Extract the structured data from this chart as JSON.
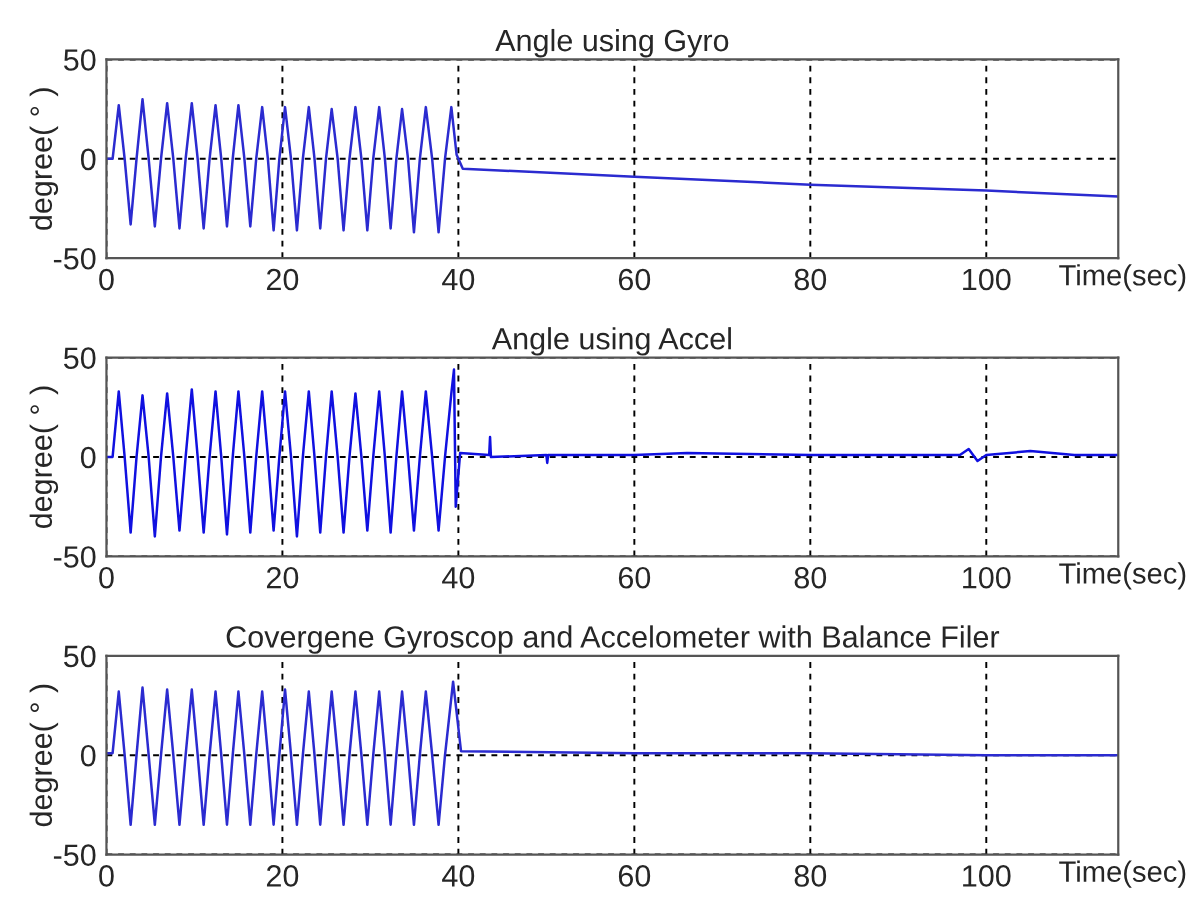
{
  "chart_data": [
    {
      "type": "line",
      "title": "Angle using Gyro",
      "xlabel": "Time(sec)",
      "ylabel": "degree( ° )",
      "xlim": [
        0,
        115
      ],
      "ylim": [
        -50,
        50
      ],
      "xticks": [
        0,
        20,
        40,
        60,
        80,
        100
      ],
      "yticks": [
        -50,
        0,
        50
      ],
      "grid": true,
      "line_style": "solid",
      "marker": "none",
      "series": [
        {
          "color": "#2b2bd0",
          "x": [
            0,
            0.7,
            1.4,
            2.07,
            2.75,
            3.42,
            4.1,
            4.8,
            5.5,
            6.2,
            6.9,
            7.6,
            8.3,
            9.0,
            9.7,
            10.37,
            11.05,
            11.72,
            12.4,
            13.05,
            13.7,
            14.35,
            15.0,
            15.68,
            16.35,
            17.02,
            17.7,
            18.35,
            19.0,
            19.65,
            20.3,
            20.98,
            21.65,
            22.32,
            23.0,
            23.65,
            24.3,
            24.95,
            25.6,
            26.28,
            26.95,
            27.62,
            28.3,
            28.98,
            29.65,
            30.32,
            31.0,
            31.65,
            32.3,
            32.95,
            33.6,
            34.28,
            34.95,
            35.62,
            36.3,
            37.02,
            37.75,
            38.48,
            39.2,
            39.8,
            40.5,
            60,
            80,
            100,
            115
          ],
          "values": [
            0,
            0,
            27,
            0,
            -33,
            0,
            30,
            0,
            -34,
            0,
            28,
            0,
            -35,
            0,
            28,
            0,
            -35,
            0,
            27,
            0,
            -34,
            0,
            27,
            0,
            -34,
            0,
            26,
            0,
            -36,
            0,
            26,
            0,
            -36,
            0,
            26,
            0,
            -35,
            0,
            25,
            0,
            -36,
            0,
            26,
            0,
            -36,
            0,
            26,
            0,
            -35,
            0,
            25,
            0,
            -37,
            0,
            26,
            0,
            -37,
            0,
            26,
            2,
            -5,
            -9,
            -13,
            -16,
            -19
          ]
        }
      ]
    },
    {
      "type": "line",
      "title": "Angle using Accel",
      "xlabel": "Time(sec)",
      "ylabel": "degree( ° )",
      "xlim": [
        0,
        115
      ],
      "ylim": [
        -50,
        50
      ],
      "xticks": [
        0,
        20,
        40,
        60,
        80,
        100
      ],
      "yticks": [
        -50,
        0,
        50
      ],
      "grid": true,
      "line_style": "solid",
      "marker": "none",
      "series": [
        {
          "color": "#1010e0",
          "x": [
            0,
            0.7,
            1.4,
            2.07,
            2.75,
            3.42,
            4.1,
            4.8,
            5.5,
            6.2,
            6.9,
            7.6,
            8.3,
            9.0,
            9.7,
            10.37,
            11.05,
            11.72,
            12.4,
            13.05,
            13.7,
            14.35,
            15.0,
            15.68,
            16.35,
            17.02,
            17.7,
            18.35,
            19.0,
            19.65,
            20.3,
            20.98,
            21.65,
            22.32,
            23.0,
            23.65,
            24.3,
            24.95,
            25.6,
            26.28,
            26.95,
            27.62,
            28.3,
            28.98,
            29.65,
            30.32,
            31.0,
            31.65,
            32.3,
            32.95,
            33.6,
            34.28,
            34.95,
            35.62,
            36.3,
            37.02,
            37.75,
            38.48,
            39.2,
            39.5,
            39.7,
            40.2,
            43.5,
            43.6,
            43.7,
            50,
            50.1,
            50.2,
            60,
            66,
            80,
            97,
            98,
            99,
            100,
            105,
            110,
            115
          ],
          "values": [
            0,
            0,
            33,
            0,
            -38,
            0,
            31,
            0,
            -40,
            0,
            32,
            0,
            -37,
            0,
            34,
            0,
            -38,
            0,
            33,
            0,
            -39,
            0,
            33,
            0,
            -38,
            0,
            33,
            0,
            -37,
            0,
            33,
            0,
            -40,
            0,
            33,
            0,
            -38,
            0,
            33,
            0,
            -38,
            0,
            32,
            0,
            -37,
            0,
            33,
            0,
            -38,
            0,
            33,
            0,
            -37,
            0,
            33,
            0,
            -37,
            0,
            32,
            44,
            -25,
            2,
            1,
            10,
            0,
            1,
            -3,
            1,
            1,
            2,
            1,
            1,
            4,
            -2,
            1,
            3,
            1,
            1
          ]
        }
      ]
    },
    {
      "type": "line",
      "title": "Covergene Gyroscop and Accelometer with Balance Filer",
      "xlabel": "Time(sec)",
      "ylabel": "degree( ° )",
      "xlim": [
        0,
        115
      ],
      "ylim": [
        -50,
        50
      ],
      "xticks": [
        0,
        20,
        40,
        60,
        80,
        100
      ],
      "yticks": [
        -50,
        0,
        50
      ],
      "grid": true,
      "line_style": "solid",
      "marker": "none",
      "series": [
        {
          "color": "#2b2bd0",
          "x": [
            0,
            0.7,
            1.4,
            2.07,
            2.75,
            3.42,
            4.1,
            4.8,
            5.5,
            6.2,
            6.9,
            7.6,
            8.3,
            9.0,
            9.7,
            10.37,
            11.05,
            11.72,
            12.4,
            13.05,
            13.7,
            14.35,
            15.0,
            15.68,
            16.35,
            17.02,
            17.7,
            18.35,
            19.0,
            19.65,
            20.3,
            20.98,
            21.65,
            22.32,
            23.0,
            23.65,
            24.3,
            24.95,
            25.6,
            26.28,
            26.95,
            27.62,
            28.3,
            28.98,
            29.65,
            30.32,
            31.0,
            31.65,
            32.3,
            32.95,
            33.6,
            34.28,
            34.95,
            35.62,
            36.3,
            37.02,
            37.75,
            38.48,
            39.4,
            40.3,
            60,
            80,
            100,
            115
          ],
          "values": [
            1,
            1,
            32,
            0,
            -35,
            0,
            34,
            0,
            -35,
            0,
            33,
            0,
            -35,
            0,
            33,
            0,
            -35,
            0,
            32,
            0,
            -35,
            0,
            32,
            0,
            -35,
            0,
            32,
            0,
            -35,
            0,
            33,
            0,
            -35,
            0,
            32,
            0,
            -35,
            0,
            32,
            0,
            -35,
            0,
            32,
            0,
            -35,
            0,
            32,
            0,
            -35,
            0,
            32,
            0,
            -35,
            0,
            32,
            0,
            -35,
            0,
            37,
            2,
            1,
            1,
            0,
            0
          ]
        }
      ]
    }
  ]
}
